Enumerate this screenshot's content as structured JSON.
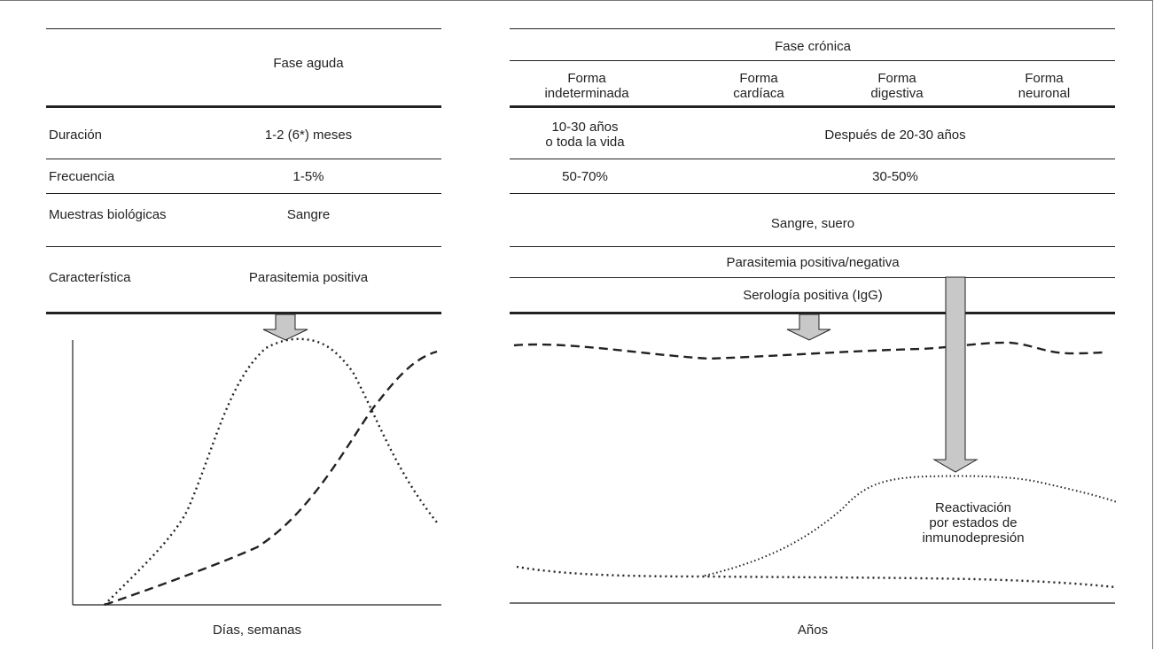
{
  "acute": {
    "header": "Fase aguda",
    "rows": [
      {
        "label": "Duración",
        "value": "1-2 (6*) meses"
      },
      {
        "label": "Frecuencia",
        "value": "1-5%"
      },
      {
        "label": "Muestras biológicas",
        "value": "Sangre"
      },
      {
        "label": "Característica",
        "value": "Parasitemia positiva"
      }
    ],
    "xlabel": "Días, semanas"
  },
  "chronic": {
    "header": "Fase crónica",
    "forms": [
      {
        "label": "Forma\nindeterminada"
      },
      {
        "label": "Forma\ncardíaca"
      },
      {
        "label": "Forma\ndigestiva"
      },
      {
        "label": "Forma\nneuronal"
      }
    ],
    "duration_indeterminate": "10-30 años\no toda la vida",
    "duration_others": "Después de 20-30 años",
    "frequency_indeterminate": "50-70%",
    "frequency_others": "30-50%",
    "samples": "Sangre, suero",
    "characteristic_1": "Parasitemia positiva/negativa",
    "characteristic_2": "Serología positiva (IgG)",
    "annotation": "Reactivación\npor estados de\ninmunodepresión",
    "xlabel": "Años"
  },
  "curve_styles": {
    "dotted": "parasitemia",
    "dashed": "serología IgG"
  },
  "colors": {
    "line": "#222222",
    "arrow_fill": "#c8c8c8",
    "frame": "#777777"
  }
}
